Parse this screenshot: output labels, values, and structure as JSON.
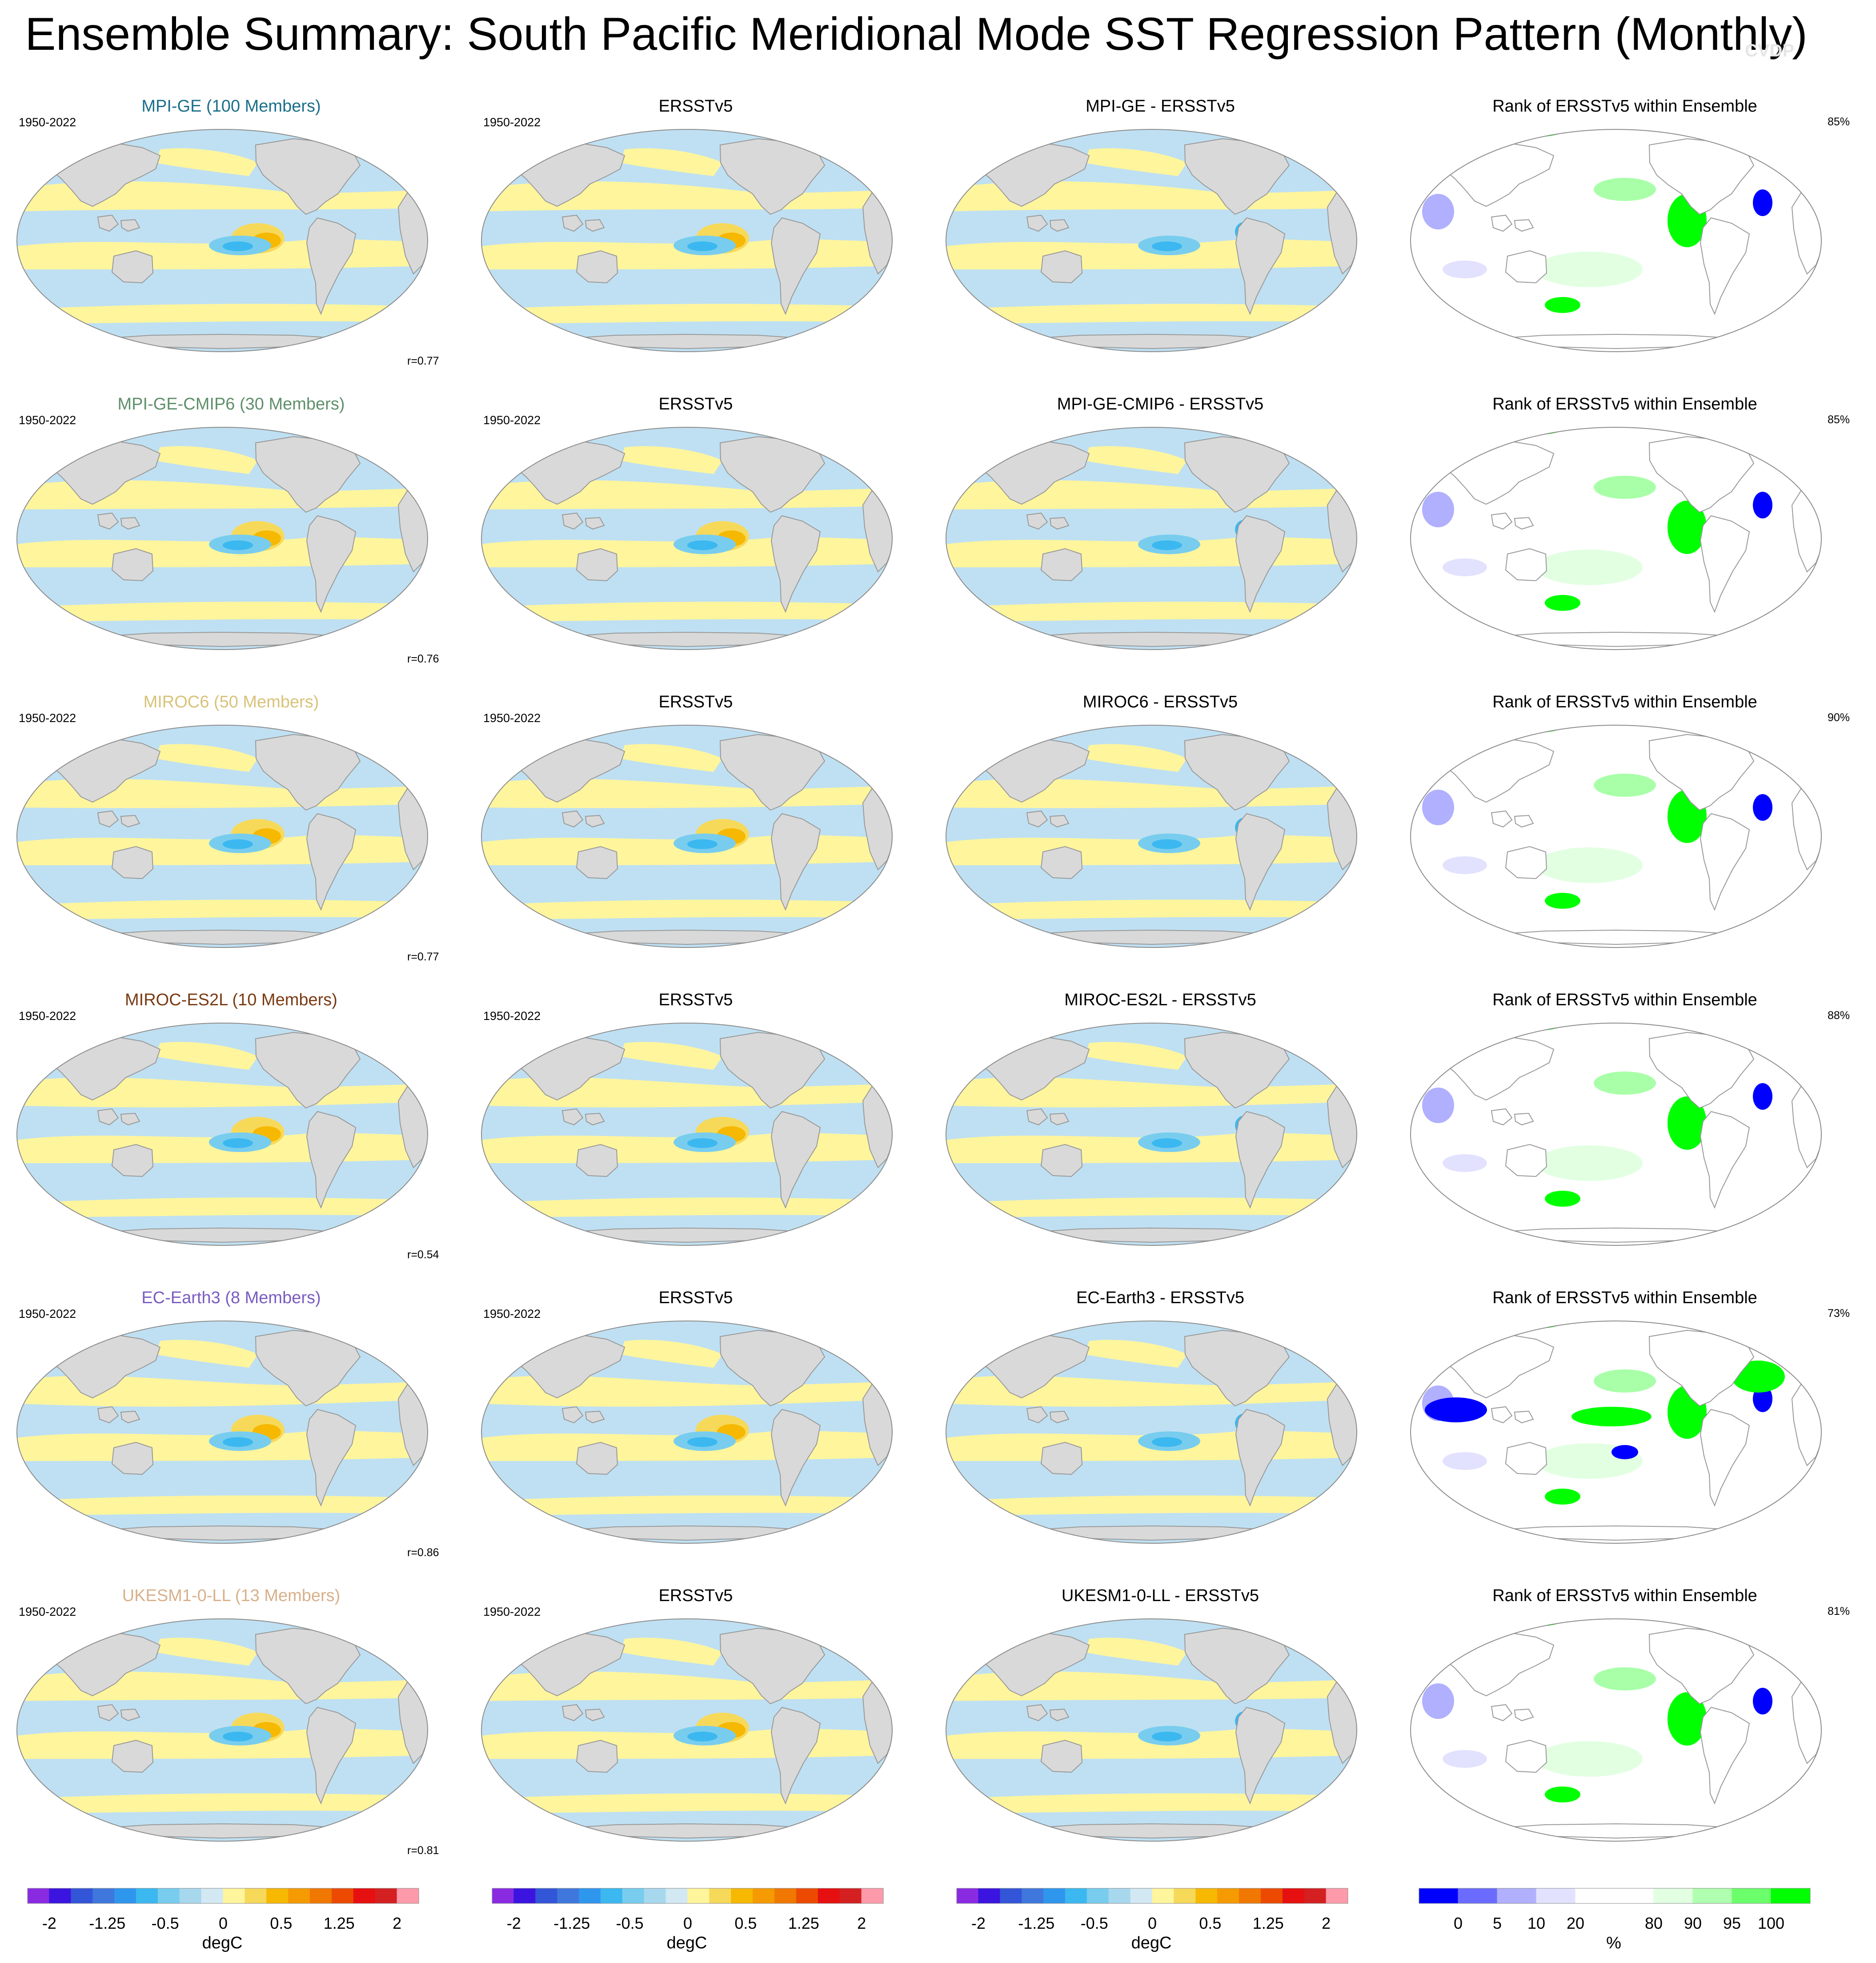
{
  "title": "Ensemble Summary: South Pacific Meridional Mode SST Regression Pattern (Monthly)",
  "watermark": "CVDP",
  "period": "1950-2022",
  "colors": {
    "land": "#d9d9d9",
    "ocean_positive": "#fff59d",
    "ocean_negative": "#bfe0f2",
    "coastline": "#999999",
    "rank_high": "#00ff00",
    "rank_low": "#0000ff"
  },
  "rows": [
    {
      "model": "MPI-GE (100 Members)",
      "model_color": "#1a6f8a",
      "obs": "ERSSTv5",
      "diff": "MPI-GE - ERSSTv5",
      "rank_title": "Rank of ERSSTv5 within Ensemble",
      "rank_pct": "85%",
      "r": "r=0.77"
    },
    {
      "model": "MPI-GE-CMIP6 (30 Members)",
      "model_color": "#5f8f6a",
      "obs": "ERSSTv5",
      "diff": "MPI-GE-CMIP6 - ERSSTv5",
      "rank_title": "Rank of ERSSTv5 within Ensemble",
      "rank_pct": "85%",
      "r": "r=0.76"
    },
    {
      "model": "MIROC6 (50 Members)",
      "model_color": "#d9c27a",
      "obs": "ERSSTv5",
      "diff": "MIROC6 - ERSSTv5",
      "rank_title": "Rank of ERSSTv5 within Ensemble",
      "rank_pct": "90%",
      "r": "r=0.77"
    },
    {
      "model": "MIROC-ES2L (10 Members)",
      "model_color": "#7a3a12",
      "obs": "ERSSTv5",
      "diff": "MIROC-ES2L - ERSSTv5",
      "rank_title": "Rank of ERSSTv5 within Ensemble",
      "rank_pct": "88%",
      "r": "r=0.54"
    },
    {
      "model": "EC-Earth3 (8 Members)",
      "model_color": "#7a5cc0",
      "obs": "ERSSTv5",
      "diff": "EC-Earth3 - ERSSTv5",
      "rank_title": "Rank of ERSSTv5 within Ensemble",
      "rank_pct": "73%",
      "r": "r=0.86"
    },
    {
      "model": "UKESM1-0-LL (13 Members)",
      "model_color": "#d8b08a",
      "obs": "ERSSTv5",
      "diff": "UKESM1-0-LL - ERSSTv5",
      "rank_title": "Rank of ERSSTv5 within Ensemble",
      "rank_pct": "81%",
      "r": "r=0.81"
    }
  ],
  "sst_colorbar": {
    "unit": "degC",
    "colors": [
      "#8a2be2",
      "#3b14e0",
      "#3355d8",
      "#3f77dc",
      "#2f96ee",
      "#3cb8f0",
      "#78cdee",
      "#a8d8ee",
      "#d2e8f2",
      "#fff59d",
      "#f7d95a",
      "#f6b800",
      "#f59a00",
      "#f07800",
      "#ec4a00",
      "#e61010",
      "#d42020",
      "#ff9aaa"
    ],
    "ticks": [
      "-2",
      "-1.25",
      "-0.5",
      "0",
      "0.5",
      "1.25",
      "2"
    ]
  },
  "rank_colorbar": {
    "unit": "%",
    "colors": [
      "#0000ff",
      "#6b6bff",
      "#b0b0ff",
      "#e2e2ff",
      "#ffffff",
      "#ffffff",
      "#e2ffe2",
      "#b0ffb0",
      "#6bff6b",
      "#00ff00"
    ],
    "ticks": [
      "0",
      "5",
      "10",
      "20",
      "80",
      "90",
      "95",
      "100"
    ]
  }
}
